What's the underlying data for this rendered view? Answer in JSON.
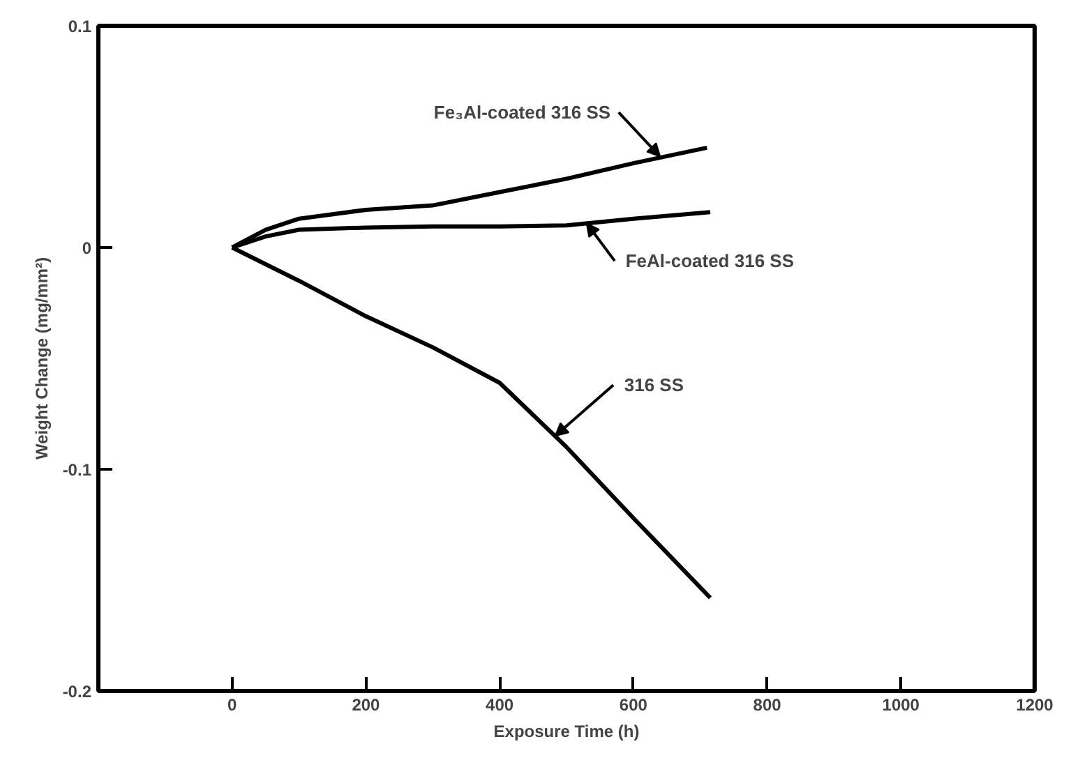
{
  "chart_data": {
    "type": "line",
    "xlabel": "Exposure Time (h)",
    "ylabel": "Weight Change (mg/mm²)",
    "xlim": [
      -200,
      1200
    ],
    "ylim": [
      -0.2,
      0.1
    ],
    "xticks": [
      0,
      200,
      400,
      600,
      800,
      1000,
      1200
    ],
    "yticks": [
      -0.2,
      -0.1,
      0,
      0.1
    ],
    "grid": false,
    "marker": "none",
    "line_style": "solid",
    "series": [
      {
        "color": "#000000",
        "x": [
          0,
          50,
          100,
          200,
          300,
          400,
          500,
          600,
          710
        ],
        "values": [
          0,
          0.008,
          0.013,
          0.017,
          0.019,
          0.025,
          0.031,
          0.038,
          0.045
        ]
      },
      {
        "color": "#000000",
        "x": [
          0,
          50,
          100,
          200,
          300,
          400,
          500,
          600,
          715
        ],
        "values": [
          0,
          0.005,
          0.008,
          0.009,
          0.0095,
          0.0095,
          0.01,
          0.013,
          0.016
        ]
      },
      {
        "color": "#000000",
        "x": [
          0,
          100,
          200,
          300,
          400,
          500,
          600,
          715
        ],
        "values": [
          0,
          -0.015,
          -0.031,
          -0.045,
          -0.061,
          -0.09,
          -0.122,
          -0.158
        ]
      }
    ],
    "annotations": [
      {
        "text": "Fe₃Al-coated 316 SS",
        "x": 640,
        "y": 0.041
      },
      {
        "text": "FeAl-coated 316 SS",
        "x": 530,
        "y": 0.011
      },
      {
        "text": "316 SS",
        "x": 483,
        "y": -0.085
      }
    ]
  }
}
